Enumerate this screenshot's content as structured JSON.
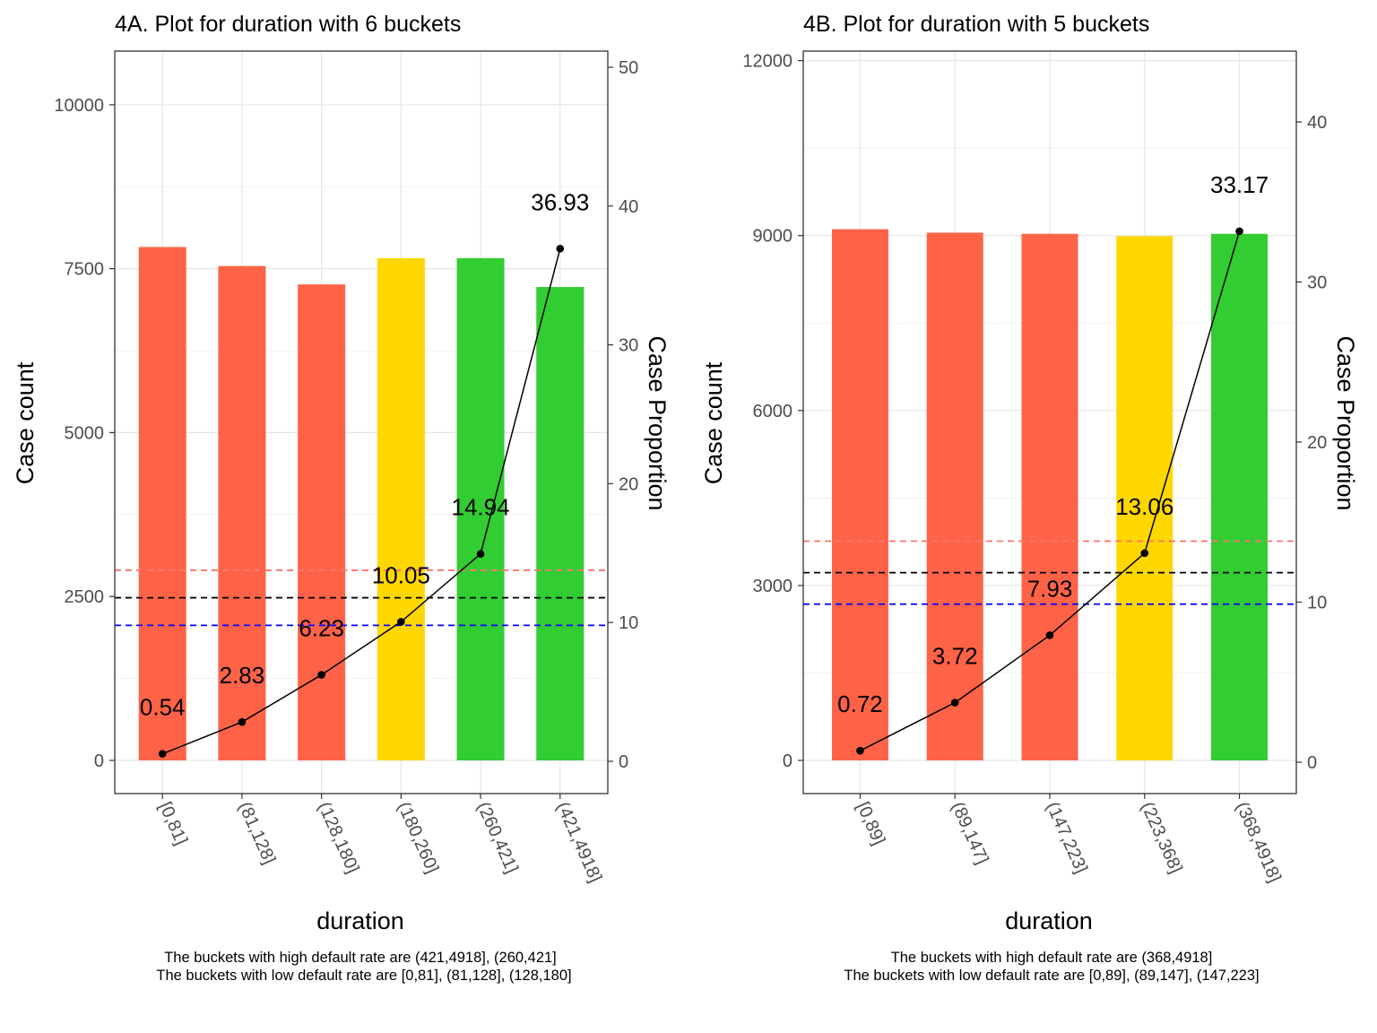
{
  "chart_data": [
    {
      "type": "bar",
      "title": "4A. Plot for duration with 6 buckets",
      "xlabel": "duration",
      "ylabel": "Case count",
      "y2label": "Case Proportion",
      "categories": [
        "[0,81]",
        "(81,128]",
        "(128,180]",
        "(180,260]",
        "(260,421]",
        "(421,4918]"
      ],
      "counts": [
        7830,
        7540,
        7260,
        7660,
        7660,
        7220
      ],
      "bar_colors": [
        "#FF6347",
        "#FF6347",
        "#FF6347",
        "#FFD700",
        "#32CD32",
        "#32CD32"
      ],
      "line_values": [
        0.54,
        2.83,
        6.23,
        10.05,
        14.94,
        36.93
      ],
      "line_labels": [
        "0.54",
        "2.83",
        "6.23",
        "10.05",
        "14.94",
        "36.93"
      ],
      "ylim": [
        -515,
        10800
      ],
      "yticks": [
        0,
        2500,
        5000,
        7500,
        10000
      ],
      "ytick_labels": [
        "0",
        "2500",
        "5000",
        "7500",
        "10000"
      ],
      "y2ticks": [
        0,
        10,
        20,
        30,
        40,
        50
      ],
      "y2tick_labels": [
        "0",
        "10",
        "20",
        "30",
        "40",
        "50"
      ],
      "hlines": [
        {
          "value": 2900,
          "color": "#F8766D"
        },
        {
          "value": 2480,
          "color": "#000000"
        },
        {
          "value": 2060,
          "color": "#0000FF"
        }
      ],
      "grid": true,
      "caption_lines": [
        "The buckets with high default rate are (421,4918], (260,421]",
        "The buckets with low default rate are [0,81], (81,128], (128,180]"
      ]
    },
    {
      "type": "bar",
      "title": "4B. Plot for duration with 5 buckets",
      "xlabel": "duration",
      "ylabel": "Case count",
      "y2label": "Case Proportion",
      "categories": [
        "[0,89]",
        "(89,147]",
        "(147,223]",
        "(223,368]",
        "(368,4918]"
      ],
      "counts": [
        9110,
        9050,
        9030,
        8990,
        9030
      ],
      "bar_colors": [
        "#FF6347",
        "#FF6347",
        "#FF6347",
        "#FFD700",
        "#32CD32"
      ],
      "line_values": [
        0.72,
        3.72,
        7.93,
        13.06,
        33.17
      ],
      "line_labels": [
        "0.72",
        "3.72",
        "7.93",
        "13.06",
        "33.17"
      ],
      "ylim": [
        -580,
        12200
      ],
      "yticks": [
        0,
        3000,
        6000,
        9000,
        12000
      ],
      "ytick_labels": [
        "0",
        "3000",
        "6000",
        "9000",
        "12000"
      ],
      "y2ticks": [
        0,
        10,
        20,
        30,
        40
      ],
      "y2tick_labels": [
        "0",
        "10",
        "20",
        "30",
        "40"
      ],
      "hlines": [
        {
          "value": 3760,
          "color": "#F8766D"
        },
        {
          "value": 3220,
          "color": "#000000"
        },
        {
          "value": 2680,
          "color": "#0000FF"
        }
      ],
      "grid": true,
      "caption_lines": [
        "The buckets with high default rate are (368,4918]",
        "The buckets with low default rate are [0,89], (89,147], (147,223]"
      ]
    }
  ]
}
